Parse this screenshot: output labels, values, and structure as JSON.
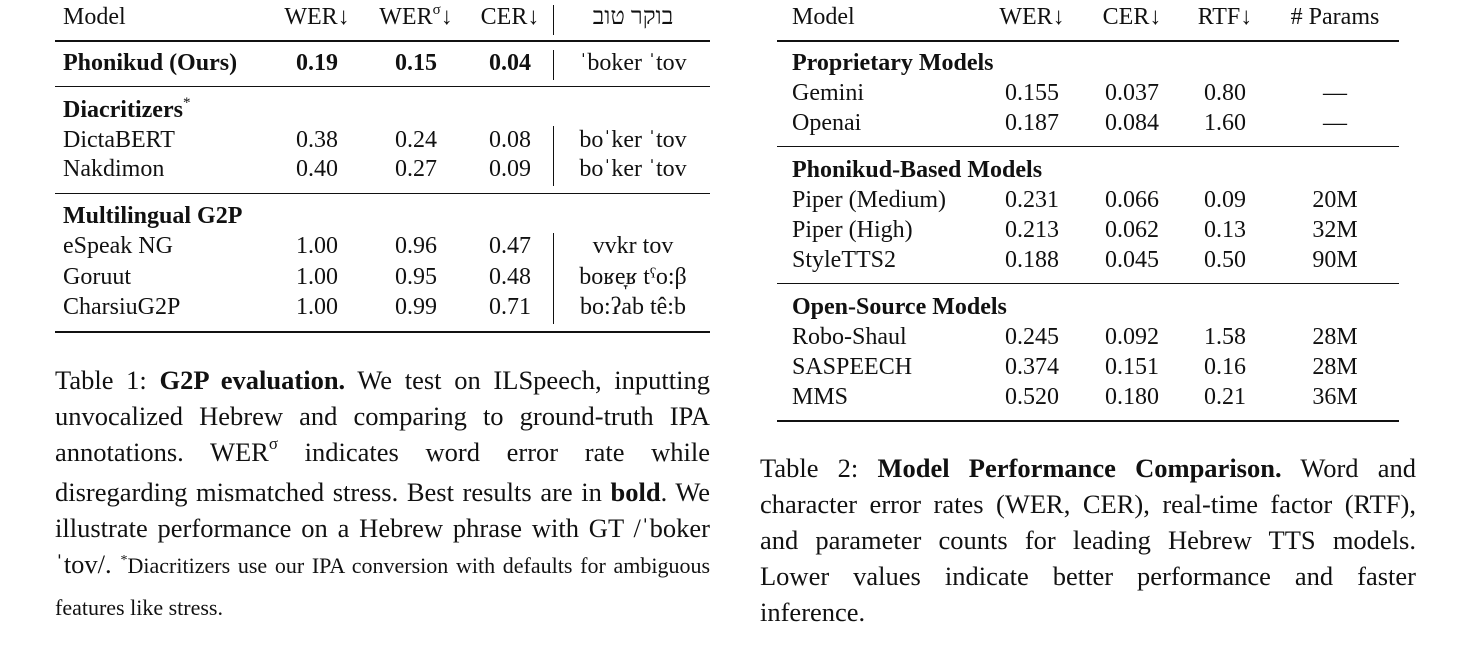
{
  "table1": {
    "headers": {
      "model": "Model",
      "wer": "WER↓",
      "wer_sigma_base": "WER",
      "wer_sigma_sup": "σ",
      "wer_sigma_arrow": "↓",
      "cer": "CER↓",
      "phrase": "בוקר טוב"
    },
    "ours": {
      "model": "Phonikud (Ours)",
      "wer": "0.19",
      "wer_sigma": "0.15",
      "cer": "0.04",
      "ipa": "ˈboker ˈtov"
    },
    "sections": [
      {
        "title": "Diacritizers",
        "title_mark": "*",
        "rows": [
          {
            "model": "DictaBERT",
            "wer": "0.38",
            "wer_sigma": "0.24",
            "cer": "0.08",
            "ipa": "boˈker ˈtov"
          },
          {
            "model": "Nakdimon",
            "wer": "0.40",
            "wer_sigma": "0.27",
            "cer": "0.09",
            "ipa": "boˈker ˈtov"
          }
        ]
      },
      {
        "title": "Multilingual G2P",
        "rows": [
          {
            "model": "eSpeak NG",
            "wer": "1.00",
            "wer_sigma": "0.96",
            "cer": "0.47",
            "ipa": "vvkr tov"
          },
          {
            "model": "Goruut",
            "wer": "1.00",
            "wer_sigma": "0.95",
            "cer": "0.48",
            "ipa": "boʁe̞ʁ tˤo:β"
          },
          {
            "model": "CharsiuG2P",
            "wer": "1.00",
            "wer_sigma": "0.99",
            "cer": "0.71",
            "ipa": "bo:ʔab tê:b"
          }
        ]
      }
    ],
    "caption": {
      "label": "Table 1:",
      "bold_title": "G2P evaluation.",
      "text1": "We test on ILSpeech, inputting unvocalized Hebrew and comparing to ground-truth IPA annotations. WER",
      "sup": "σ",
      "text2": "indicates word error rate while disregarding mismatched stress. Best results are in",
      "bold_word": "bold",
      "text3": ". We illustrate performance on a Hebrew phrase with GT /ˈboker ˈtov/.",
      "footnote_mark": "*",
      "footnote": "Diacritizers use our IPA conversion with defaults for ambiguous features like stress."
    }
  },
  "table2": {
    "headers": {
      "model": "Model",
      "wer": "WER↓",
      "cer": "CER↓",
      "rtf": "RTF↓",
      "params": "# Params"
    },
    "sections": [
      {
        "title": "Proprietary Models",
        "rows": [
          {
            "model": "Gemini",
            "wer": "0.155",
            "cer": "0.037",
            "rtf": "0.80",
            "params": "—"
          },
          {
            "model": "Openai",
            "wer": "0.187",
            "cer": "0.084",
            "rtf": "1.60",
            "params": "—"
          }
        ]
      },
      {
        "title": "Phonikud-Based Models",
        "rows": [
          {
            "model": "Piper (Medium)",
            "wer": "0.231",
            "cer": "0.066",
            "rtf": "0.09",
            "params": "20M"
          },
          {
            "model": "Piper (High)",
            "wer": "0.213",
            "cer": "0.062",
            "rtf": "0.13",
            "params": "32M"
          },
          {
            "model": "StyleTTS2",
            "wer": "0.188",
            "cer": "0.045",
            "rtf": "0.50",
            "params": "90M"
          }
        ]
      },
      {
        "title": "Open-Source Models",
        "rows": [
          {
            "model": "Robo-Shaul",
            "wer": "0.245",
            "cer": "0.092",
            "rtf": "1.58",
            "params": "28M"
          },
          {
            "model": "SASPEECH",
            "wer": "0.374",
            "cer": "0.151",
            "rtf": "0.16",
            "params": "28M"
          },
          {
            "model": "MMS",
            "wer": "0.520",
            "cer": "0.180",
            "rtf": "0.21",
            "params": "36M"
          }
        ]
      }
    ],
    "caption": {
      "label": "Table 2:",
      "bold_title": "Model Performance Comparison.",
      "text": "Word and character error rates (WER, CER), real-time factor (RTF), and parameter counts for leading Hebrew TTS models. Lower values indicate better performance and faster inference."
    }
  }
}
